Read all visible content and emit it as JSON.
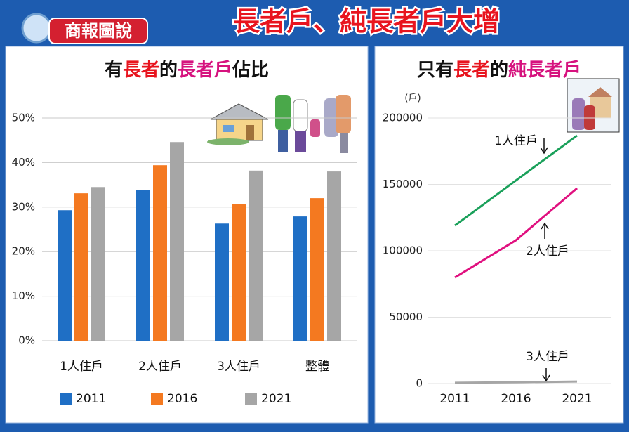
{
  "header": {
    "logo": "商報圖說",
    "title": "長者戶、純長者戶大增"
  },
  "chart_data": [
    {
      "type": "bar",
      "title": [
        "有",
        "長者",
        "的",
        "長者戶",
        "佔比"
      ],
      "categories": [
        "1人住戶",
        "2人住戶",
        "3人住戶",
        "整體"
      ],
      "series": [
        {
          "name": "2011",
          "color": "#1f6fc5",
          "values": [
            29.3,
            33.9,
            26.3,
            27.9
          ]
        },
        {
          "name": "2016",
          "color": "#f47920",
          "values": [
            33.1,
            39.4,
            30.6,
            32.0
          ]
        },
        {
          "name": "2021",
          "color": "#a6a6a6",
          "values": [
            34.5,
            44.6,
            38.2,
            38.0
          ]
        }
      ],
      "ylim": [
        0,
        50
      ],
      "yticks": [
        {
          "value": 0,
          "label": "0%"
        },
        {
          "value": 10,
          "label": "10%"
        },
        {
          "value": 20,
          "label": "20%"
        },
        {
          "value": 30,
          "label": "30%"
        },
        {
          "value": 40,
          "label": "40%"
        },
        {
          "value": 50,
          "label": "50%"
        }
      ],
      "grid": true
    },
    {
      "type": "line",
      "title": [
        "只有",
        "長者",
        "的",
        "純長者戶"
      ],
      "y_label": "(戶)",
      "x": [
        2011,
        2016,
        2021
      ],
      "series": [
        {
          "name": "1人住戶",
          "color": "#1aa05a",
          "values": [
            119000,
            153000,
            186800
          ]
        },
        {
          "name": "2人住戶",
          "color": "#e0107f",
          "values": [
            79900,
            107900,
            147100
          ]
        },
        {
          "name": "3人住戶",
          "color": "#a6a6a6",
          "values": [
            600,
            1000,
            1500
          ]
        }
      ],
      "xlim": [
        2011,
        2021
      ],
      "xticks": [
        2011,
        2016,
        2021
      ],
      "ylim": [
        0,
        200000
      ],
      "yticks": [
        0,
        50000,
        100000,
        150000,
        200000
      ],
      "grid": true
    }
  ]
}
